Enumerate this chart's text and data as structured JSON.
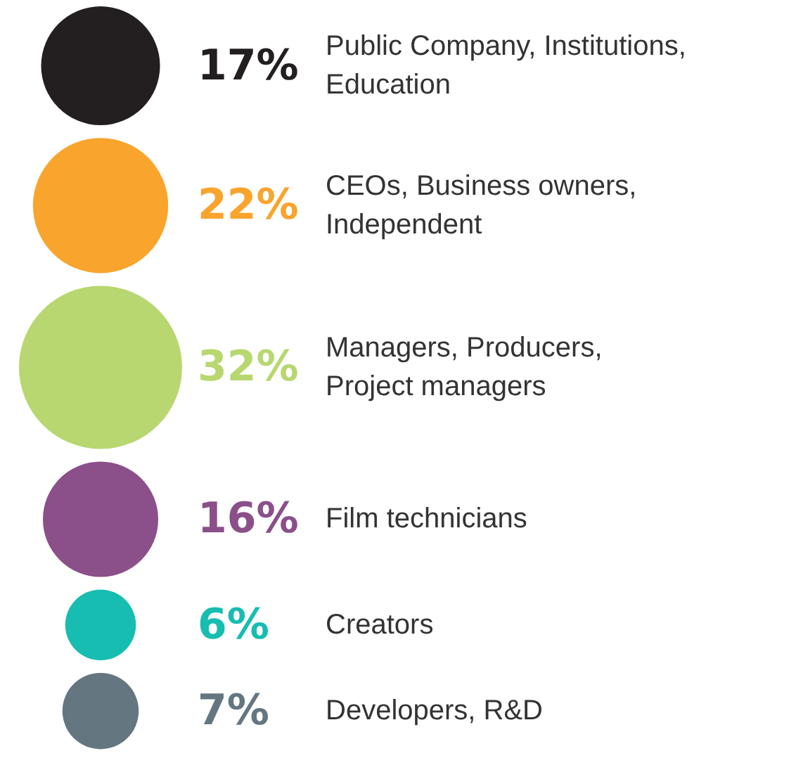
{
  "chart_data": {
    "type": "other",
    "categories": [
      "Public Company, Institutions,\nEducation",
      "CEOs, Business owners,\nIndependent",
      "Managers, Producers,\nProject managers",
      "Film technicians",
      "Creators",
      "Developers, R&D"
    ],
    "values": [
      17,
      22,
      32,
      16,
      6,
      7
    ],
    "value_labels": [
      "17%",
      "22%",
      "32%",
      "16%",
      "6%",
      "7%"
    ],
    "colors": [
      "#231f20",
      "#f9a42d",
      "#b8d770",
      "#8b4f8a",
      "#16bdb0",
      "#647680"
    ]
  }
}
